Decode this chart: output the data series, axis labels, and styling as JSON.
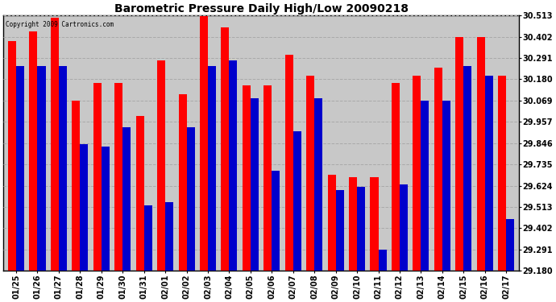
{
  "title": "Barometric Pressure Daily High/Low 20090218",
  "copyright": "Copyright 2009 Cartronics.com",
  "dates": [
    "01/25",
    "01/26",
    "01/27",
    "01/28",
    "01/29",
    "01/30",
    "01/31",
    "02/01",
    "02/02",
    "02/03",
    "02/04",
    "02/05",
    "02/06",
    "02/07",
    "02/08",
    "02/09",
    "02/10",
    "02/11",
    "02/12",
    "02/13",
    "02/14",
    "02/15",
    "02/16",
    "02/17"
  ],
  "highs": [
    30.38,
    30.43,
    30.5,
    30.07,
    30.16,
    30.16,
    29.99,
    30.28,
    30.1,
    30.51,
    30.45,
    30.15,
    30.15,
    30.31,
    30.2,
    29.68,
    29.67,
    29.67,
    30.16,
    30.2,
    30.24,
    30.4,
    30.4,
    30.2
  ],
  "lows": [
    30.25,
    30.25,
    30.25,
    29.84,
    29.83,
    29.93,
    29.52,
    29.54,
    29.93,
    30.25,
    30.28,
    30.08,
    29.7,
    29.91,
    30.08,
    29.6,
    29.62,
    29.29,
    29.63,
    30.07,
    30.07,
    30.25,
    30.2,
    29.45
  ],
  "high_color": "#ff0000",
  "low_color": "#0000cc",
  "plot_bg_color": "#c8c8c8",
  "fig_bg_color": "#ffffff",
  "grid_color": "#aaaaaa",
  "yticks": [
    29.18,
    29.291,
    29.402,
    29.513,
    29.624,
    29.735,
    29.846,
    29.957,
    30.069,
    30.18,
    30.291,
    30.402,
    30.513
  ],
  "ymin": 29.18,
  "ymax": 30.513,
  "bar_width": 0.38,
  "title_fontsize": 10,
  "tick_fontsize": 7
}
